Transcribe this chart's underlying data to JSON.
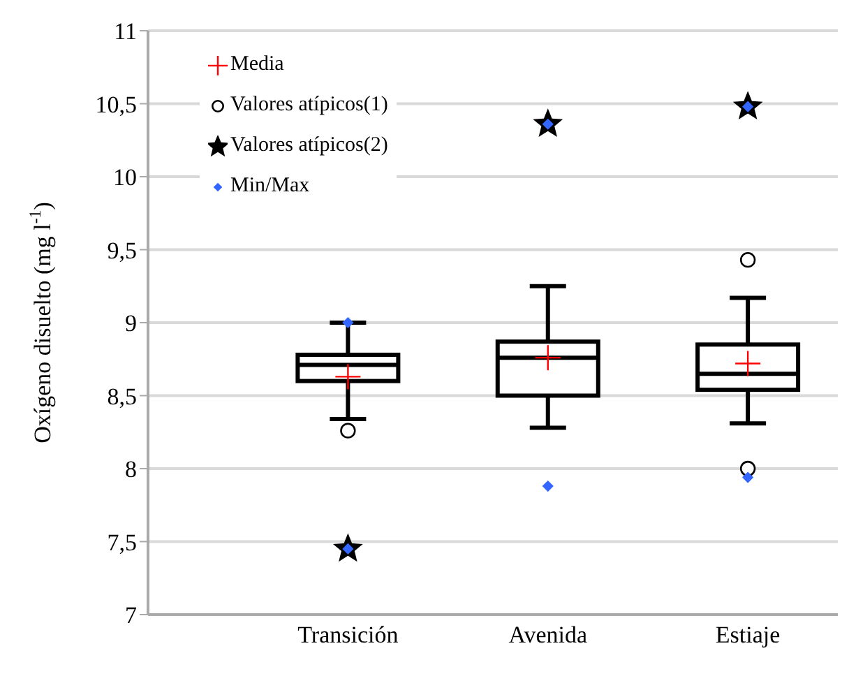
{
  "chart_data": {
    "type": "box",
    "ylabel": "Oxígeno disuelto (mg l$^{-1}$)",
    "categories": [
      "Transición",
      "Avenida",
      "Estiaje"
    ],
    "ylim": [
      7,
      11
    ],
    "yticks": [
      7,
      {
        "value": 7.5,
        "label": "7,5"
      },
      8,
      {
        "value": 8.5,
        "label": "8,5"
      },
      9,
      {
        "value": 9.5,
        "label": "9,5"
      },
      10,
      {
        "value": 10.5,
        "label": "10,5"
      },
      11
    ],
    "grid": "y",
    "legend": "top left",
    "series": [
      {
        "type": "box",
        "color": "#000000",
        "boxes": [
          {
            "low": 8.34,
            "q1": 8.6,
            "median": 8.71,
            "q3": 8.78,
            "high": 9.0
          },
          {
            "low": 8.28,
            "q1": 8.5,
            "median": 8.76,
            "q3": 8.87,
            "high": 9.25
          },
          {
            "low": 8.31,
            "q1": 8.54,
            "median": 8.65,
            "q3": 8.85,
            "high": 9.17
          }
        ]
      },
      {
        "type": "scatter",
        "name": "Media",
        "marker": "cross",
        "color": "#ff0000",
        "x": [
          "Transición",
          "Avenida",
          "Estiaje"
        ],
        "values": [
          8.63,
          8.76,
          8.72
        ]
      },
      {
        "type": "scatter",
        "name": "Valores atípicos(1)",
        "marker": "circle",
        "color": "#000000",
        "x": [
          "Transición",
          "Estiaje",
          "Estiaje"
        ],
        "values": [
          8.26,
          9.43,
          8.0
        ]
      },
      {
        "type": "scatter",
        "name": "Valores atípicos(2)",
        "marker": "star",
        "color": "#000000",
        "x": [
          "Transición",
          "Avenida",
          "Estiaje"
        ],
        "values": [
          7.45,
          10.36,
          10.48
        ]
      },
      {
        "type": "scatter",
        "name": "Min/Max",
        "marker": "diamond",
        "color": "#3366ff",
        "x": [
          "Transición",
          "Transición",
          "Avenida",
          "Avenida",
          "Estiaje",
          "Estiaje"
        ],
        "values": [
          7.45,
          9.0,
          7.88,
          10.36,
          7.94,
          10.48
        ]
      }
    ]
  }
}
